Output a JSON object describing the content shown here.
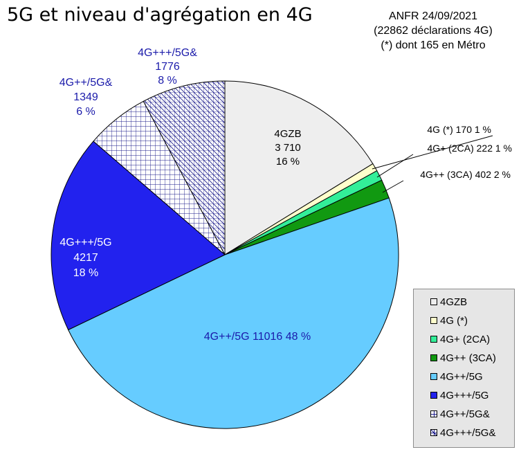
{
  "title": "5G et niveau d'agrégation en 4G",
  "source": {
    "line1": "ANFR 24/09/2021",
    "line2": "(22862 déclarations 4G)",
    "line3": "(*) dont 165 en Métro"
  },
  "chart_data": {
    "type": "pie",
    "total": 22862,
    "slices": [
      {
        "key": "4GZB",
        "legend": "4GZB",
        "value": 3710,
        "percent": 16,
        "label_lines": [
          "4GZB",
          "3 710",
          "16 %"
        ],
        "color": "#eeeeee",
        "pattern": null,
        "text_color": "#000000"
      },
      {
        "key": "4G",
        "legend": "4G (*)",
        "value": 170,
        "percent": 1,
        "label_lines": [
          "4G (*) 170 1 %"
        ],
        "color": "#ffffcc",
        "pattern": null,
        "text_color": "#000000"
      },
      {
        "key": "4G+",
        "legend": "4G+ (2CA)",
        "value": 222,
        "percent": 1,
        "label_lines": [
          "4G+ (2CA) 222 1 %"
        ],
        "color": "#33ee99",
        "pattern": null,
        "text_color": "#000000"
      },
      {
        "key": "4G++",
        "legend": "4G++ (3CA)",
        "value": 402,
        "percent": 2,
        "label_lines": [
          "4G++ (3CA) 402 2 %"
        ],
        "color": "#119911",
        "pattern": null,
        "text_color": "#000000"
      },
      {
        "key": "4G++/5G",
        "legend": "4G++/5G",
        "value": 11016,
        "percent": 48,
        "label_lines": [
          "4G++/5G 11016 48 %"
        ],
        "color": "#66ccff",
        "pattern": null,
        "text_color": "#1a1aaa"
      },
      {
        "key": "4G+++/5G",
        "legend": "4G+++/5G",
        "value": 4217,
        "percent": 18,
        "label_lines": [
          "4G+++/5G",
          "4217",
          "18 %"
        ],
        "color": "#2222ee",
        "pattern": null,
        "text_color": "#ffffff"
      },
      {
        "key": "4G++/5G&",
        "legend": "4G++/5G&",
        "value": 1349,
        "percent": 6,
        "label_lines": [
          "4G++/5G&",
          "1349",
          "6 %"
        ],
        "color": "#ffffff",
        "pattern": "grid",
        "text_color": "#1a1aaa"
      },
      {
        "key": "4G+++/5G&",
        "legend": "4G+++/5G&",
        "value": 1776,
        "percent": 8,
        "label_lines": [
          "4G+++/5G&",
          "1776",
          "8 %"
        ],
        "color": "#ffffff",
        "pattern": "crosshatch",
        "text_color": "#1a1aaa"
      }
    ],
    "start_angle_deg": 0,
    "direction": "clockwise",
    "legend_position": "bottom-right"
  }
}
